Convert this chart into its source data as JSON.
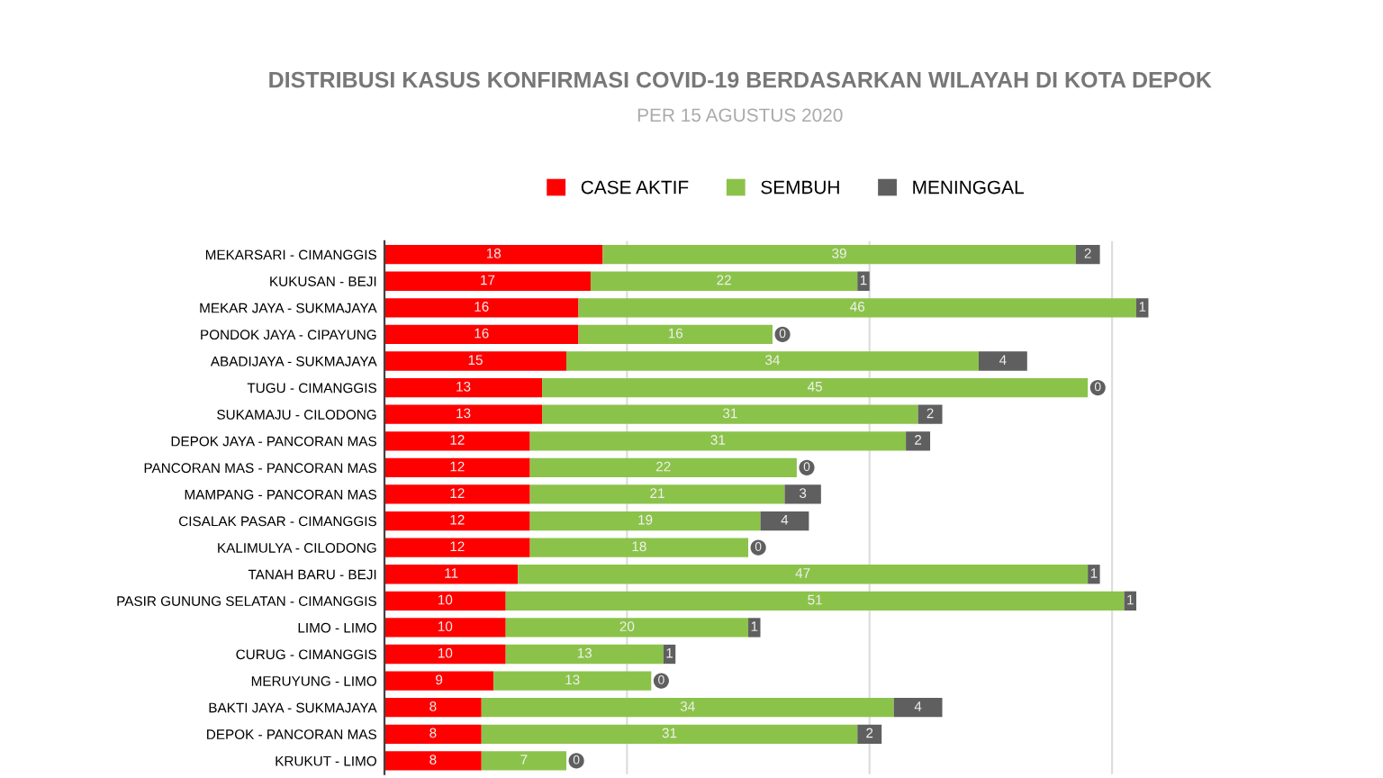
{
  "chart_data": {
    "type": "bar",
    "orientation": "horizontal",
    "stacked": true,
    "title": "DISTRIBUSI KASUS KONFIRMASI COVID-19 BERDASARKAN WILAYAH DI KOTA DEPOK",
    "subtitle": "PER 15 AGUSTUS 2020",
    "categories": [
      "MEKARSARI - CIMANGGIS",
      "KUKUSAN - BEJI",
      "MEKAR JAYA - SUKMAJAYA",
      "PONDOK JAYA - CIPAYUNG",
      "ABADIJAYA - SUKMAJAYA",
      "TUGU - CIMANGGIS",
      "SUKAMAJU - CILODONG",
      "DEPOK JAYA - PANCORAN MAS",
      "PANCORAN MAS - PANCORAN MAS",
      "MAMPANG - PANCORAN MAS",
      "CISALAK PASAR - CIMANGGIS",
      "KALIMULYA - CILODONG",
      "TANAH BARU - BEJI",
      "PASIR GUNUNG SELATAN - CIMANGGIS",
      "LIMO - LIMO",
      "CURUG - CIMANGGIS",
      "MERUYUNG - LIMO",
      "BAKTI JAYA - SUKMAJAYA",
      "DEPOK - PANCORAN MAS",
      "KRUKUT - LIMO"
    ],
    "series": [
      {
        "name": "CASE AKTIF",
        "color": "#ff0000",
        "values": [
          18,
          17,
          16,
          16,
          15,
          13,
          13,
          12,
          12,
          12,
          12,
          12,
          11,
          10,
          10,
          10,
          9,
          8,
          8,
          8
        ]
      },
      {
        "name": "SEMBUH",
        "color": "#8bc34a",
        "values": [
          39,
          22,
          46,
          16,
          34,
          45,
          31,
          31,
          22,
          21,
          19,
          18,
          47,
          51,
          20,
          13,
          13,
          34,
          31,
          7
        ]
      },
      {
        "name": "MENINGGAL",
        "color": "#5f5f5f",
        "values": [
          2,
          1,
          1,
          0,
          4,
          0,
          2,
          2,
          0,
          3,
          4,
          0,
          1,
          1,
          1,
          1,
          0,
          4,
          2,
          0
        ]
      }
    ],
    "xticks": [
      {
        "value": 0,
        "label": null
      },
      {
        "value": 20,
        "label": null
      },
      {
        "value": 40,
        "label": null
      },
      {
        "value": 60,
        "label": null
      }
    ],
    "grid": "x",
    "legend": "top",
    "data_labels": true,
    "tick_labels": "y"
  }
}
